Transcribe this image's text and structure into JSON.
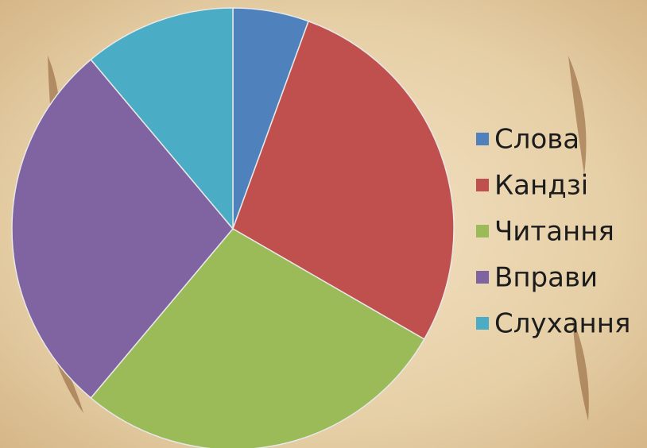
{
  "chart_data": {
    "type": "pie",
    "categories": [
      "Слова",
      "Кандзі",
      "Читання",
      "Вправи",
      "Слухання"
    ],
    "values": [
      5,
      25,
      25,
      25,
      10
    ],
    "colors": [
      "#4f81bd",
      "#c0504d",
      "#9bbb59",
      "#8064a2",
      "#4bacc6"
    ],
    "legend": "right"
  }
}
